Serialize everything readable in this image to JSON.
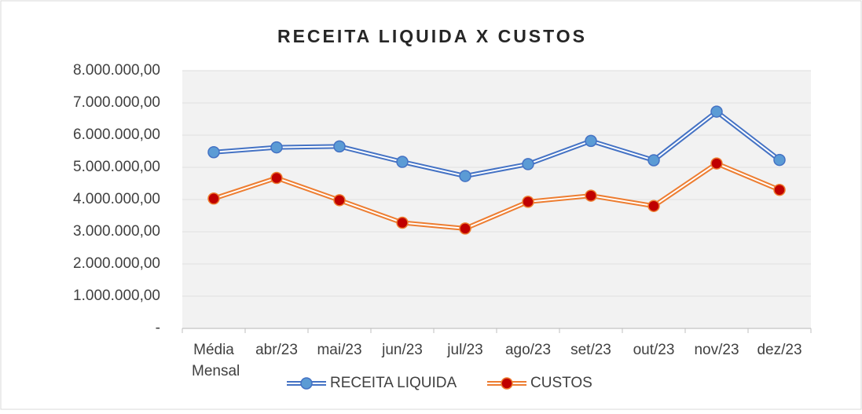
{
  "chart_data": {
    "type": "line",
    "title": "RECEITA LIQUIDA X CUSTOS",
    "categories": [
      "Média Mensal",
      "abr/23",
      "mai/23",
      "jun/23",
      "jul/23",
      "ago/23",
      "set/23",
      "out/23",
      "nov/23",
      "dez/23"
    ],
    "series": [
      {
        "name": "RECEITA LIQUIDA",
        "color": "#4472c4",
        "marker_color": "#5b9bd5",
        "values": [
          5470000,
          5620000,
          5650000,
          5170000,
          4730000,
          5100000,
          5820000,
          5220000,
          6730000,
          5230000
        ]
      },
      {
        "name": "CUSTOS",
        "color": "#ed7d31",
        "marker_color": "#c00000",
        "values": [
          4030000,
          4670000,
          3980000,
          3280000,
          3100000,
          3930000,
          4120000,
          3800000,
          5120000,
          4300000
        ]
      }
    ],
    "ylim": [
      0,
      8000000
    ],
    "yticks": [
      {
        "value": 0,
        "label": "-"
      },
      {
        "value": 1000000,
        "label": "1.000.000,00"
      },
      {
        "value": 2000000,
        "label": "2.000.000,00"
      },
      {
        "value": 3000000,
        "label": "3.000.000,00"
      },
      {
        "value": 4000000,
        "label": "4.000.000,00"
      },
      {
        "value": 5000000,
        "label": "5.000.000,00"
      },
      {
        "value": 6000000,
        "label": "6.000.000,00"
      },
      {
        "value": 7000000,
        "label": "7.000.000,00"
      },
      {
        "value": 8000000,
        "label": "8.000.000,00"
      }
    ],
    "grid": true,
    "legend": "bottom"
  }
}
